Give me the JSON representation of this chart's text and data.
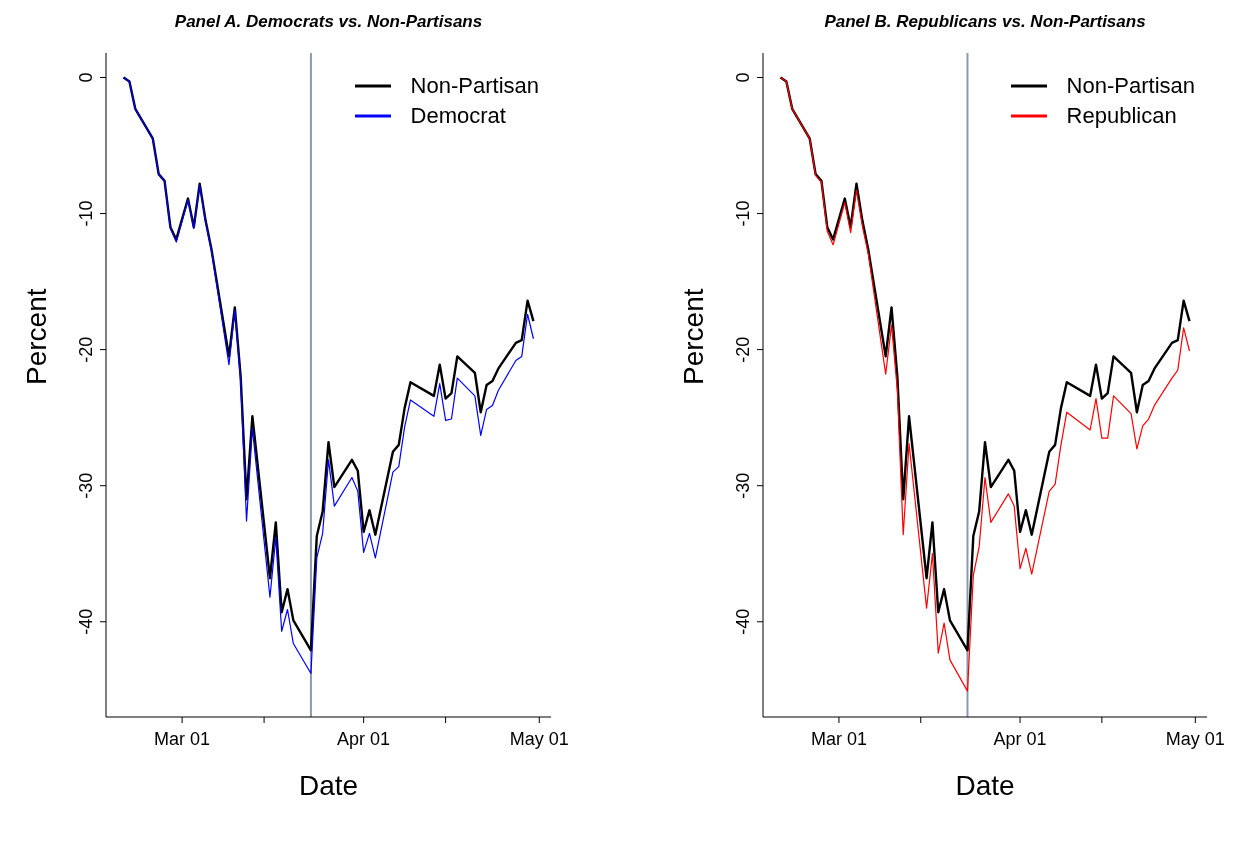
{
  "chart_data": [
    {
      "type": "line",
      "title": "Panel A. Democrats vs. Non-Partisans",
      "xlabel": "Date",
      "ylabel": "Percent",
      "x": [
        "--02-19",
        "--02-20",
        "--02-21",
        "--02-24",
        "--02-25",
        "--02-26",
        "--02-27",
        "--02-28",
        "--03-02",
        "--03-03",
        "--03-04",
        "--03-05",
        "--03-06",
        "--03-09",
        "--03-10",
        "--03-11",
        "--03-12",
        "--03-13",
        "--03-16",
        "--03-17",
        "--03-18",
        "--03-19",
        "--03-20",
        "--03-23",
        "--03-24",
        "--03-25",
        "--03-26",
        "--03-27",
        "--03-30",
        "--03-31",
        "--04-01",
        "--04-02",
        "--04-03",
        "--04-06",
        "--04-07",
        "--04-08",
        "--04-09",
        "--04-13",
        "--04-14",
        "--04-15",
        "--04-16",
        "--04-17",
        "--04-20",
        "--04-21",
        "--04-22",
        "--04-23",
        "--04-24",
        "--04-27",
        "--04-28",
        "--04-29",
        "--04-30"
      ],
      "series": [
        {
          "name": "Non-Partisan",
          "color": "#000000",
          "values": [
            0,
            -0.3,
            -2.3,
            -4.5,
            -7.1,
            -7.6,
            -11.0,
            -11.9,
            -8.9,
            -11.0,
            -7.8,
            -10.5,
            -12.6,
            -20.5,
            -16.9,
            -22.0,
            -31.0,
            -24.9,
            -36.8,
            -32.7,
            -39.3,
            -37.6,
            -39.9,
            -42.1,
            -33.7,
            -31.9,
            -26.8,
            -30.1,
            -28.1,
            -28.9,
            -33.4,
            -31.8,
            -33.6,
            -27.5,
            -27.0,
            -24.3,
            -22.4,
            -23.4,
            -21.1,
            -23.6,
            -23.2,
            -20.5,
            -21.7,
            -24.6,
            -22.6,
            -22.3,
            -21.4,
            -19.5,
            -19.3,
            -16.4,
            -17.9
          ]
        },
        {
          "name": "Democrat",
          "color": "#0000ff",
          "values": [
            0,
            -0.3,
            -2.3,
            -4.5,
            -7.1,
            -7.6,
            -11.1,
            -12.1,
            -9.0,
            -11.1,
            -7.9,
            -10.6,
            -12.7,
            -21.1,
            -17.1,
            -22.3,
            -32.6,
            -25.8,
            -38.2,
            -33.8,
            -40.7,
            -39.1,
            -41.6,
            -43.8,
            -35.3,
            -33.5,
            -28.1,
            -31.5,
            -29.4,
            -30.4,
            -34.9,
            -33.5,
            -35.3,
            -29.0,
            -28.6,
            -25.7,
            -23.7,
            -24.9,
            -22.5,
            -25.2,
            -25.1,
            -22.1,
            -23.4,
            -26.3,
            -24.4,
            -24.1,
            -23.0,
            -20.8,
            -20.5,
            -17.4,
            -19.2
          ]
        }
      ],
      "xlim": [
        "--02-16",
        "--05-03"
      ],
      "xticks": [
        {
          "value": "--03-01",
          "label": "Mar 01"
        },
        {
          "value": "--03-15",
          "label": null
        },
        {
          "value": "--04-01",
          "label": "Apr 01"
        },
        {
          "value": "--04-15",
          "label": null
        },
        {
          "value": "--05-01",
          "label": "May 01"
        }
      ],
      "ylim": [
        -47,
        1.8
      ],
      "yticks": [
        0,
        -10,
        -20,
        -30,
        -40
      ],
      "ref_lines": [
        {
          "axis": "x",
          "value": "--03-23",
          "color": "#8a9bb0"
        }
      ],
      "legend": "top right",
      "grid": false
    },
    {
      "type": "line",
      "title": "Panel B. Republicans vs. Non-Partisans",
      "xlabel": "Date",
      "ylabel": "Percent",
      "x": [
        "--02-19",
        "--02-20",
        "--02-21",
        "--02-24",
        "--02-25",
        "--02-26",
        "--02-27",
        "--02-28",
        "--03-02",
        "--03-03",
        "--03-04",
        "--03-05",
        "--03-06",
        "--03-09",
        "--03-10",
        "--03-11",
        "--03-12",
        "--03-13",
        "--03-16",
        "--03-17",
        "--03-18",
        "--03-19",
        "--03-20",
        "--03-23",
        "--03-24",
        "--03-25",
        "--03-26",
        "--03-27",
        "--03-30",
        "--03-31",
        "--04-01",
        "--04-02",
        "--04-03",
        "--04-06",
        "--04-07",
        "--04-08",
        "--04-09",
        "--04-13",
        "--04-14",
        "--04-15",
        "--04-16",
        "--04-17",
        "--04-20",
        "--04-21",
        "--04-22",
        "--04-23",
        "--04-24",
        "--04-27",
        "--04-28",
        "--04-29",
        "--04-30"
      ],
      "series": [
        {
          "name": "Non-Partisan",
          "color": "#000000",
          "values": [
            0,
            -0.3,
            -2.3,
            -4.5,
            -7.1,
            -7.6,
            -11.0,
            -11.9,
            -8.9,
            -11.0,
            -7.8,
            -10.5,
            -12.6,
            -20.5,
            -16.9,
            -22.0,
            -31.0,
            -24.9,
            -36.8,
            -32.7,
            -39.3,
            -37.6,
            -39.9,
            -42.1,
            -33.7,
            -31.9,
            -26.8,
            -30.1,
            -28.1,
            -28.9,
            -33.4,
            -31.8,
            -33.6,
            -27.5,
            -27.0,
            -24.3,
            -22.4,
            -23.4,
            -21.1,
            -23.6,
            -23.2,
            -20.5,
            -21.7,
            -24.6,
            -22.6,
            -22.3,
            -21.4,
            -19.5,
            -19.3,
            -16.4,
            -17.9
          ]
        },
        {
          "name": "Republican",
          "color": "#ff0000",
          "values": [
            0,
            -0.3,
            -2.3,
            -4.5,
            -7.2,
            -7.7,
            -11.3,
            -12.3,
            -9.2,
            -11.4,
            -8.3,
            -10.9,
            -12.9,
            -21.8,
            -18.2,
            -23.0,
            -33.6,
            -26.9,
            -39.0,
            -35.0,
            -42.3,
            -40.1,
            -42.8,
            -45.1,
            -36.6,
            -34.5,
            -29.4,
            -32.7,
            -30.6,
            -31.5,
            -36.1,
            -34.6,
            -36.5,
            -30.4,
            -29.9,
            -27.0,
            -24.6,
            -25.9,
            -23.6,
            -26.5,
            -26.5,
            -23.4,
            -24.7,
            -27.3,
            -25.6,
            -25.1,
            -24.1,
            -22.1,
            -21.5,
            -18.4,
            -20.1
          ]
        }
      ],
      "xlim": [
        "--02-16",
        "--05-03"
      ],
      "xticks": [
        {
          "value": "--03-01",
          "label": "Mar 01"
        },
        {
          "value": "--03-15",
          "label": null
        },
        {
          "value": "--04-01",
          "label": "Apr 01"
        },
        {
          "value": "--04-15",
          "label": null
        },
        {
          "value": "--05-01",
          "label": "May 01"
        }
      ],
      "ylim": [
        -47,
        1.8
      ],
      "yticks": [
        0,
        -10,
        -20,
        -30,
        -40
      ],
      "ref_lines": [
        {
          "axis": "x",
          "value": "--03-23",
          "color": "#8a9bb0"
        }
      ],
      "legend": "top right",
      "grid": false
    }
  ]
}
